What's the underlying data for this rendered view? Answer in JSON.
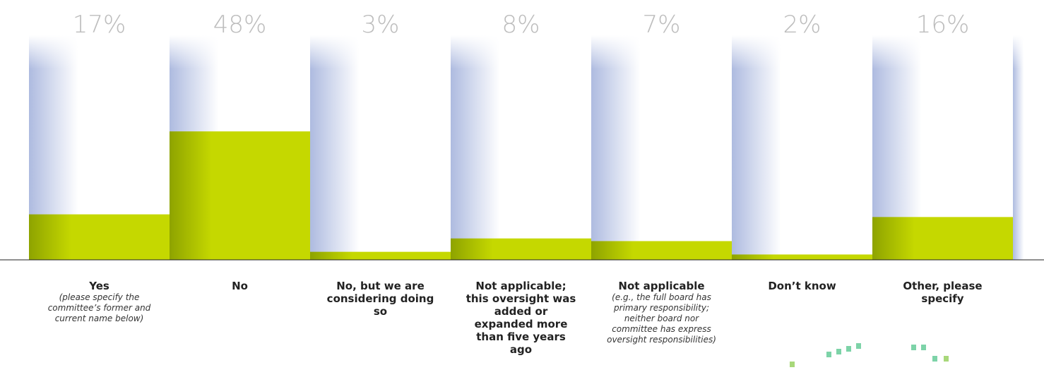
{
  "chart_data": {
    "type": "bar",
    "categories": [
      "Yes",
      "No",
      "No, but we are considering doing so",
      "Not applicable; this oversight was added or expanded more than five years ago",
      "Not applicable",
      "Don’t know",
      "Other, please specify"
    ],
    "category_notes": [
      "(please specify the committee’s former and current name below)",
      null,
      null,
      null,
      "(e.g., the full board has primary responsibility; neither board nor committee has express oversight responsibilities)",
      null,
      null
    ],
    "values": [
      17,
      48,
      3,
      8,
      7,
      2,
      16
    ],
    "value_labels": [
      "17%",
      "48%",
      "3%",
      "8%",
      "7%",
      "2%",
      "16%"
    ],
    "color": "#c5d800"
  }
}
